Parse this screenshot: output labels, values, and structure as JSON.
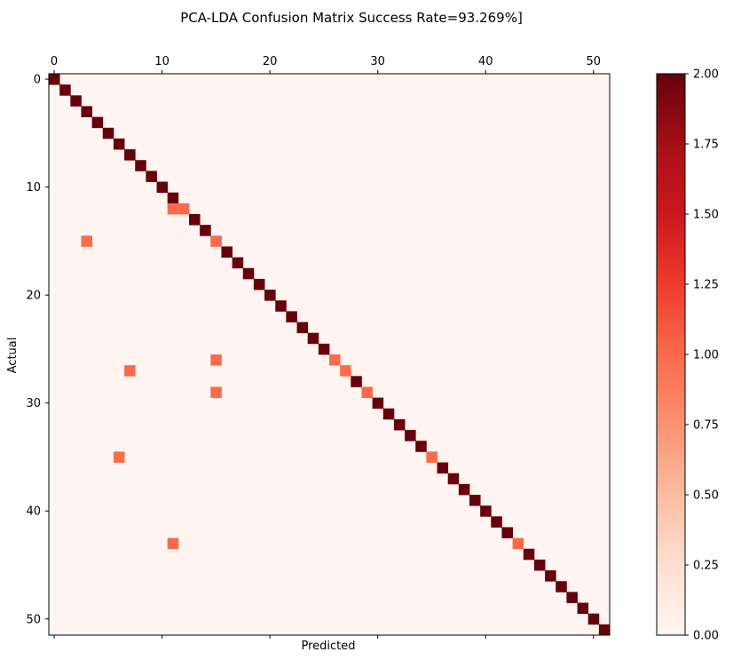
{
  "chart_data": {
    "type": "heatmap",
    "title": "PCA-LDA Confusion Matrix Success Rate=93.269%]",
    "xlabel": "Predicted",
    "ylabel": "Actual",
    "n_classes": 52,
    "xticks": [
      0,
      10,
      20,
      30,
      40,
      50
    ],
    "yticks": [
      0,
      10,
      20,
      30,
      40,
      50
    ],
    "colorbar": {
      "min": 0,
      "max": 2,
      "ticks": [
        "0.00",
        "0.25",
        "0.50",
        "0.75",
        "1.00",
        "1.25",
        "1.50",
        "1.75",
        "2.00"
      ]
    },
    "colormap": "Reds",
    "colors": {
      "low": "#fff5f0",
      "mid": "#fc8a6a",
      "high": "#67000d"
    },
    "diagonal_default": 2,
    "cells": [
      {
        "actual": 12,
        "predicted": 11,
        "value": 1
      },
      {
        "actual": 12,
        "predicted": 12,
        "value": 1
      },
      {
        "actual": 15,
        "predicted": 3,
        "value": 1
      },
      {
        "actual": 15,
        "predicted": 15,
        "value": 1
      },
      {
        "actual": 26,
        "predicted": 15,
        "value": 1
      },
      {
        "actual": 26,
        "predicted": 26,
        "value": 1
      },
      {
        "actual": 27,
        "predicted": 7,
        "value": 1
      },
      {
        "actual": 27,
        "predicted": 27,
        "value": 1
      },
      {
        "actual": 29,
        "predicted": 15,
        "value": 1
      },
      {
        "actual": 29,
        "predicted": 29,
        "value": 1
      },
      {
        "actual": 35,
        "predicted": 6,
        "value": 1
      },
      {
        "actual": 35,
        "predicted": 35,
        "value": 1
      },
      {
        "actual": 43,
        "predicted": 11,
        "value": 1
      },
      {
        "actual": 43,
        "predicted": 43,
        "value": 1
      }
    ]
  }
}
